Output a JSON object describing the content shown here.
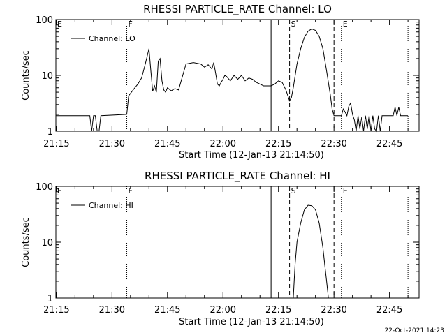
{
  "footer": {
    "timestamp": "22-Oct-2021 14:23"
  },
  "chart_data": [
    {
      "type": "line",
      "title": "RHESSI PARTICLE_RATE Channel: LO",
      "xlabel": "Start Time (12-Jan-13 21:14:50)",
      "ylabel": "Counts/sec",
      "yscale": "log",
      "ylim": [
        1,
        100
      ],
      "xlim": [
        "21:14:50",
        "22:53:00"
      ],
      "x_ticks": [
        "21:15",
        "21:30",
        "21:45",
        "22:00",
        "22:15",
        "22:30",
        "22:45"
      ],
      "y_ticks": [
        "1",
        "10",
        "100"
      ],
      "legend": {
        "label": "Channel: LO",
        "position": "top-left"
      },
      "markers": [
        {
          "label": "E",
          "time": "21:14:50",
          "style": "none"
        },
        {
          "label": "F",
          "time": "21:34:00",
          "style": "dotted"
        },
        {
          "label": "",
          "time": "22:13:00",
          "style": "solid"
        },
        {
          "label": "S",
          "time": "22:18:00",
          "style": "dashed"
        },
        {
          "label": "",
          "time": "22:30:00",
          "style": "dashed"
        },
        {
          "label": "E",
          "time": "22:32:00",
          "style": "dotted"
        },
        {
          "label": "",
          "time": "22:50:00",
          "style": "dotted"
        }
      ],
      "series": [
        {
          "name": "Channel: LO",
          "x": [
            "21:14:50",
            "21:24:00",
            "21:24:30",
            "21:25:00",
            "21:25:30",
            "21:26:00",
            "21:26:30",
            "21:27:00",
            "21:34:00",
            "21:34:30",
            "21:36:00",
            "21:37:00",
            "21:38:00",
            "21:38:30",
            "21:39:00",
            "21:39:30",
            "21:40:00",
            "21:40:30",
            "21:41:00",
            "21:41:30",
            "21:42:00",
            "21:42:30",
            "21:43:00",
            "21:43:30",
            "21:44:00",
            "21:44:30",
            "21:45:00",
            "21:46:00",
            "21:47:00",
            "21:48:00",
            "21:50:00",
            "21:52:00",
            "21:54:00",
            "21:55:00",
            "21:56:00",
            "21:57:00",
            "21:57:30",
            "21:58:00",
            "21:58:30",
            "21:59:00",
            "21:59:30",
            "22:00:00",
            "22:00:30",
            "22:01:00",
            "22:02:00",
            "22:03:00",
            "22:04:00",
            "22:05:00",
            "22:06:00",
            "22:07:00",
            "22:08:00",
            "22:09:00",
            "22:10:00",
            "22:11:00",
            "22:12:00",
            "22:13:00",
            "22:14:00",
            "22:15:00",
            "22:16:00",
            "22:17:00",
            "22:18:00",
            "22:18:30",
            "22:19:00",
            "22:20:00",
            "22:21:00",
            "22:22:00",
            "22:23:00",
            "22:24:00",
            "22:25:00",
            "22:26:00",
            "22:27:00",
            "22:28:00",
            "22:29:00",
            "22:29:30",
            "22:30:00",
            "22:31:00",
            "22:32:00",
            "22:32:30",
            "22:33:00",
            "22:33:30",
            "22:34:00",
            "22:34:30",
            "22:35:00",
            "22:35:30",
            "22:36:00",
            "22:36:30",
            "22:37:00",
            "22:37:30",
            "22:38:00",
            "22:38:30",
            "22:39:00",
            "22:39:30",
            "22:40:00",
            "22:40:30",
            "22:41:00",
            "22:41:30",
            "22:42:00",
            "22:42:30",
            "22:43:00",
            "22:44:00",
            "22:45:00",
            "22:46:00",
            "22:46:30",
            "22:47:00",
            "22:47:30",
            "22:48:00",
            "22:49:00",
            "22:50:00"
          ],
          "y": [
            1.9,
            1.9,
            1.0,
            1.9,
            1.9,
            1.0,
            1.0,
            1.9,
            2.0,
            4.3,
            5.8,
            7.0,
            9.0,
            12.0,
            16.0,
            22.0,
            30.0,
            12.0,
            5.2,
            6.5,
            5.0,
            18.0,
            20.0,
            8.0,
            5.5,
            5.0,
            6.0,
            5.3,
            5.8,
            5.5,
            16.0,
            17.0,
            16.0,
            14.0,
            15.5,
            13.0,
            17.0,
            11.0,
            7.0,
            6.5,
            7.5,
            8.5,
            10.0,
            9.5,
            8.0,
            10.0,
            8.5,
            10.0,
            8.0,
            9.0,
            8.5,
            7.5,
            7.0,
            6.5,
            6.5,
            6.5,
            7.0,
            8.0,
            7.5,
            5.5,
            3.5,
            4.0,
            6.0,
            16.0,
            30.0,
            48.0,
            62.0,
            68.0,
            64.0,
            50.0,
            30.0,
            12.0,
            4.5,
            2.5,
            1.9,
            1.9,
            1.9,
            2.5,
            2.2,
            1.9,
            2.8,
            3.2,
            2.0,
            1.6,
            1.0,
            1.9,
            1.1,
            1.8,
            1.0,
            1.9,
            1.1,
            1.9,
            1.0,
            1.9,
            1.1,
            1.0,
            1.9,
            1.0,
            1.9,
            1.9,
            1.9,
            1.9,
            2.7,
            1.9,
            2.7,
            1.9,
            1.9,
            1.9
          ]
        }
      ]
    },
    {
      "type": "line",
      "title": "RHESSI PARTICLE_RATE Channel: HI",
      "xlabel": "Start Time (12-Jan-13 21:14:50)",
      "ylabel": "Counts/sec",
      "yscale": "log",
      "ylim": [
        1,
        100
      ],
      "xlim": [
        "21:14:50",
        "22:53:00"
      ],
      "x_ticks": [
        "21:15",
        "21:30",
        "21:45",
        "22:00",
        "22:15",
        "22:30",
        "22:45"
      ],
      "y_ticks": [
        "1",
        "10",
        "100"
      ],
      "legend": {
        "label": "Channel: HI",
        "position": "top-left"
      },
      "markers": [
        {
          "label": "E",
          "time": "21:14:50",
          "style": "none"
        },
        {
          "label": "F",
          "time": "21:34:00",
          "style": "dotted"
        },
        {
          "label": "",
          "time": "22:13:00",
          "style": "solid"
        },
        {
          "label": "S",
          "time": "22:18:00",
          "style": "dashed"
        },
        {
          "label": "",
          "time": "22:30:00",
          "style": "dashed"
        },
        {
          "label": "E",
          "time": "22:32:00",
          "style": "dotted"
        },
        {
          "label": "",
          "time": "22:50:00",
          "style": "dotted"
        }
      ],
      "series": [
        {
          "name": "Channel: HI",
          "x": [
            "22:19:00",
            "22:19:30",
            "22:20:00",
            "22:21:00",
            "22:22:00",
            "22:23:00",
            "22:24:00",
            "22:25:00",
            "22:26:00",
            "22:27:00",
            "22:27:30",
            "22:28:00",
            "22:28:30"
          ],
          "y": [
            1.0,
            4.0,
            10.0,
            22.0,
            38.0,
            46.0,
            45.0,
            38.0,
            22.0,
            8.0,
            4.0,
            2.0,
            1.0
          ]
        }
      ]
    }
  ]
}
